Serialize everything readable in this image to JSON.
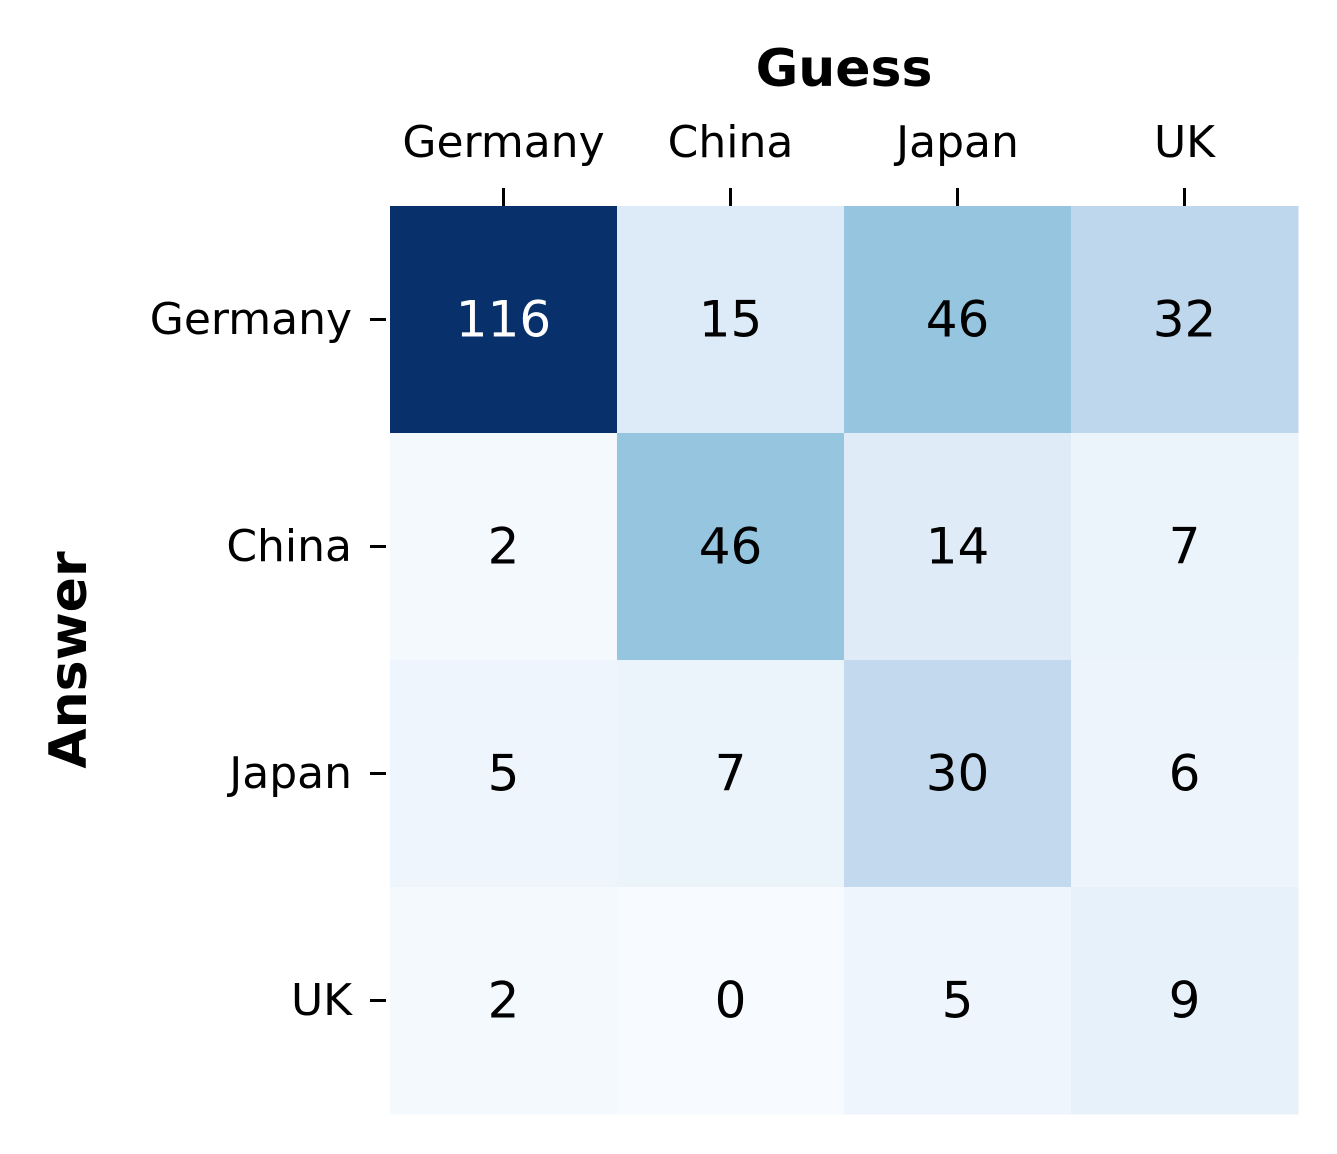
{
  "chart_data": {
    "type": "heatmap",
    "title": "",
    "xlabel": "Guess",
    "ylabel": "Answer",
    "x_categories": [
      "Germany",
      "China",
      "Japan",
      "UK"
    ],
    "y_categories": [
      "Germany",
      "China",
      "Japan",
      "UK"
    ],
    "values": [
      [
        116,
        15,
        46,
        32
      ],
      [
        2,
        46,
        14,
        7
      ],
      [
        5,
        7,
        30,
        6
      ],
      [
        2,
        0,
        5,
        9
      ]
    ],
    "colormap": "Blues",
    "vmin": 0,
    "vmax": 116,
    "x_axis_position": "top",
    "colorbar": false,
    "colors": {
      "low": "#f7fbff",
      "high": "#08306b",
      "text_dark": "#000000",
      "text_light": "#ffffff"
    }
  }
}
